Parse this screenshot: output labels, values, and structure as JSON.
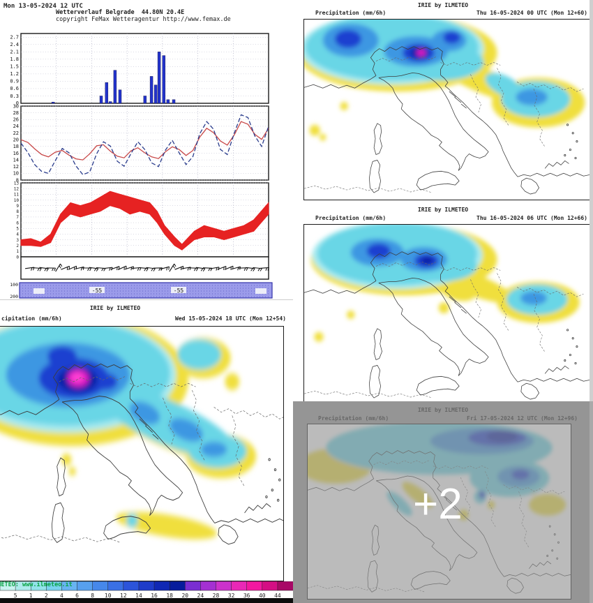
{
  "meteogram": {
    "header": {
      "datetime": "Mon 13-05-2024 12 UTC",
      "title": "Wetterverlauf Belgrade  44.80N 20.4E",
      "copyright": "copyright FeMax Wetteragentur http://www.femax.de"
    },
    "strip": {
      "color": "#9b9bea",
      "left_labels": [
        "100",
        "200"
      ],
      "values": [
        "-55",
        "-55"
      ]
    }
  },
  "chart_data": [
    {
      "type": "bar",
      "panel": "precipitation-bars",
      "ylim": [
        0,
        2.85
      ],
      "yticks": [
        0.3,
        0.6,
        0.9,
        1.2,
        1.5,
        1.8,
        2.1,
        2.4,
        2.7
      ],
      "baseline_label": "0",
      "bar_color": "#2233cc",
      "x": [
        0.13,
        0.324,
        0.346,
        0.361,
        0.38,
        0.4,
        0.501,
        0.527,
        0.544,
        0.558,
        0.577,
        0.594,
        0.617
      ],
      "values": [
        0.05,
        0.3,
        0.85,
        0.07,
        1.35,
        0.55,
        0.3,
        1.1,
        0.75,
        2.1,
        1.95,
        0.15,
        0.15
      ]
    },
    {
      "type": "line",
      "panel": "temperature-lines",
      "ylim": [
        8,
        30
      ],
      "yticks": [
        8,
        10,
        12,
        14,
        16,
        18,
        20,
        22,
        24,
        26,
        28,
        30
      ],
      "x_uniform": true,
      "series": [
        {
          "name": "temperature-solid-red",
          "color": "#c84848",
          "dash": "",
          "values": [
            20,
            19.2,
            17.3,
            15.6,
            14.9,
            16.3,
            16.8,
            15.4,
            14.3,
            14.0,
            15.8,
            18.2,
            18.5,
            16.6,
            15.1,
            14.6,
            16.7,
            17.6,
            16.1,
            14.9,
            14.4,
            16.4,
            17.9,
            17.1,
            15.3,
            16.8,
            20.8,
            23.4,
            22.1,
            19.6,
            18.4,
            21.4,
            25.4,
            24.6,
            21.6,
            20.1,
            23.4
          ]
        },
        {
          "name": "temperature-dashed-navy",
          "color": "#2a3c8c",
          "dash": "6,3",
          "values": [
            19,
            16.2,
            12.6,
            10.6,
            10,
            13.8,
            17.4,
            16.1,
            12.2,
            9.6,
            10.4,
            15.8,
            19.4,
            18.1,
            13.6,
            12.1,
            15.9,
            19.4,
            17.1,
            13.1,
            12,
            16.9,
            19.8,
            16.1,
            12.6,
            15,
            21.8,
            25.4,
            23.1,
            17.1,
            15.6,
            21.9,
            27.4,
            26.6,
            21.1,
            18,
            24
          ]
        }
      ]
    },
    {
      "type": "area",
      "panel": "wind-speed-band",
      "ylim": [
        0,
        13
      ],
      "yticks": [
        0,
        1,
        2,
        3,
        4,
        5,
        6,
        7,
        8,
        9,
        10,
        11,
        12,
        13
      ],
      "color": "#e62222",
      "x": [
        0,
        0.04,
        0.08,
        0.12,
        0.16,
        0.2,
        0.24,
        0.28,
        0.32,
        0.36,
        0.4,
        0.44,
        0.48,
        0.52,
        0.55,
        0.58,
        0.62,
        0.65,
        0.7,
        0.74,
        0.78,
        0.82,
        0.86,
        0.9,
        0.94,
        0.97,
        1
      ],
      "min": [
        2,
        2,
        1.8,
        2.5,
        6,
        7.5,
        7,
        7.5,
        8,
        9,
        8.5,
        7.5,
        8,
        7.5,
        6,
        4,
        2,
        1.2,
        3,
        3.5,
        3.5,
        3,
        3.5,
        4,
        4.5,
        6,
        7.5
      ],
      "max": [
        3,
        3.2,
        2.6,
        4,
        7.5,
        9.5,
        9,
        9.5,
        10.5,
        11.5,
        11,
        10.5,
        10,
        9.5,
        8,
        5.5,
        3.5,
        2.2,
        4.5,
        5.5,
        5,
        4.5,
        5,
        5.5,
        6.5,
        8,
        9.5
      ]
    },
    {
      "type": "wind-barbs",
      "panel": "wind-direction-arrows"
    },
    {
      "type": "strip",
      "panel": "upper-air-strip",
      "color": "#9b9bea",
      "values": [
        "-55",
        "-55"
      ],
      "left_labels": [
        "100",
        "200"
      ]
    }
  ],
  "maps": {
    "title": "IRIE by ILMETEO",
    "caption_left": "Precipitation (mm/6h)",
    "large": {
      "caption_left": "cipitation (mm/6h)",
      "caption_right": "Wed 15-05-2024 18 UTC (Mon 12+54)"
    },
    "top_right": {
      "caption_right": "Thu 16-05-2024 00 UTC (Mon 12+60)"
    },
    "mid_right": {
      "caption_right": "Thu 16-05-2024 06 UTC (Mon 12+66)"
    },
    "bottom_right": {
      "caption_right": "Fri 17-05-2024 12 UTC (Mon 12+96)",
      "overlay": "+2"
    },
    "watermark": "ILMETEO: www.ilmeteo.it",
    "palette": {
      "yellow": "#f0df3e",
      "light_cyan": "#a9ebf0",
      "cyan": "#69d6e6",
      "mid_blue": "#3d97e2",
      "deep_blue": "#1c3fd0",
      "navy": "#0a22a8",
      "magenta": "#da18c2",
      "pink": "#ff40d4"
    },
    "colorbar": {
      "labels": [
        "5",
        "1",
        "2",
        "4",
        "6",
        "8",
        "10",
        "12",
        "14",
        "16",
        "18",
        "20",
        "24",
        "28",
        "32",
        "36",
        "40",
        "44"
      ],
      "colors": [
        "#c9f2f0",
        "#aeeaec",
        "#93e2ea",
        "#79d2ee",
        "#68b4f2",
        "#57a0ee",
        "#4688ea",
        "#3a70e4",
        "#2c54da",
        "#1e3cca",
        "#1028b4",
        "#071c9c",
        "#7a2ed2",
        "#a430d2",
        "#cc32cc",
        "#ea28b6",
        "#f318a0",
        "#d40e84",
        "#a80866"
      ]
    }
  }
}
